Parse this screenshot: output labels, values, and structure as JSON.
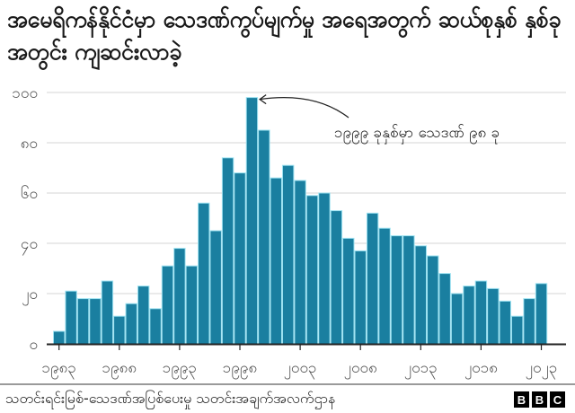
{
  "title": "အမေရိကန်နိုင်ငံမှာ သေဒဏ်ကွပ်မျက်မှု အရေအတွက် ဆယ်စုနှစ် နှစ်ခုအတွင်း ကျဆင်းလာခဲ့",
  "source": "သတင်းရင်းမြစ်-သေဒဏ်အပြစ်ပေးမှု သတင်းအချက်အလက်ဌာန",
  "logo": [
    "B",
    "B",
    "C"
  ],
  "colors": {
    "bar": "#1a7fa0",
    "bar_edge": "#9fe3f2",
    "grid": "#dddddd",
    "axis": "#222222"
  },
  "chart_data": {
    "type": "bar",
    "title": "အမေရိကန်နိုင်ငံမှာ သေဒဏ်ကွပ်မျက်မှု အရေအတွက် ဆယ်စုနှစ် နှစ်ခုအတွင်း ကျဆင်းလာခဲ့",
    "xlabel": "",
    "ylabel": "",
    "ylim": [
      0,
      100
    ],
    "grid": true,
    "legend": null,
    "categories": [
      1983,
      1984,
      1985,
      1986,
      1987,
      1988,
      1989,
      1990,
      1991,
      1992,
      1993,
      1994,
      1995,
      1996,
      1997,
      1998,
      1999,
      2000,
      2001,
      2002,
      2003,
      2004,
      2005,
      2006,
      2007,
      2008,
      2009,
      2010,
      2011,
      2012,
      2013,
      2014,
      2015,
      2016,
      2017,
      2018,
      2019,
      2020,
      2021,
      2022,
      2023
    ],
    "values": [
      5,
      21,
      18,
      18,
      25,
      11,
      16,
      23,
      14,
      31,
      38,
      31,
      56,
      45,
      74,
      68,
      98,
      85,
      66,
      71,
      65,
      59,
      60,
      53,
      42,
      37,
      52,
      46,
      43,
      43,
      39,
      35,
      28,
      20,
      23,
      25,
      22,
      17,
      11,
      18,
      24
    ],
    "y_ticks": [
      {
        "value": 0,
        "label": "၀"
      },
      {
        "value": 20,
        "label": "၂၀"
      },
      {
        "value": 40,
        "label": "၄၀"
      },
      {
        "value": 60,
        "label": "၆၀"
      },
      {
        "value": 80,
        "label": "၈၀"
      },
      {
        "value": 100,
        "label": "၁၀၀"
      }
    ],
    "x_ticks": [
      {
        "year": 1983,
        "label": "၁၉၈၃"
      },
      {
        "year": 1988,
        "label": "၁၉၈၈"
      },
      {
        "year": 1993,
        "label": "၁၉၉၃"
      },
      {
        "year": 1998,
        "label": "၁၉၉၈"
      },
      {
        "year": 2003,
        "label": "၂၀၀၃"
      },
      {
        "year": 2008,
        "label": "၂၀၀၈"
      },
      {
        "year": 2013,
        "label": "၂၀၁၃"
      },
      {
        "year": 2018,
        "label": "၂၀၁၈"
      },
      {
        "year": 2023,
        "label": "၂၀၂၃"
      }
    ],
    "annotations": [
      {
        "target_year": 1999,
        "value": 98,
        "text": "၁၉၉၉ ခုနှစ်မှာ သေဒဏ် ၉၈ ခု"
      }
    ]
  }
}
